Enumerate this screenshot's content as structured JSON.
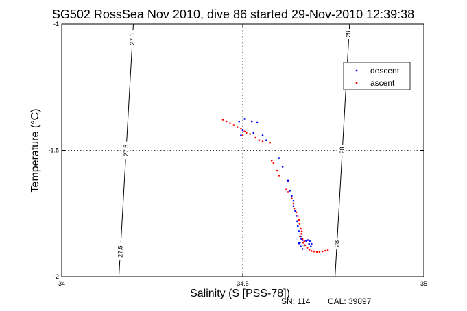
{
  "chart_data": {
    "type": "scatter",
    "title": "SG502 RossSea Nov 2010, dive 86 started 29-Nov-2010 12:39:38",
    "xlabel": "Salinity (S [PSS-78])",
    "ylabel": "Temperature (°C)",
    "xlim": [
      34,
      35
    ],
    "ylim": [
      -2,
      -1
    ],
    "xticks": [
      "34",
      "34.5",
      "35"
    ],
    "yticks": [
      "-1",
      "-1.5",
      "-2"
    ],
    "grid": "dotted lines at x=34.5 and y=-1.5",
    "legend_position": "top-right",
    "footer": {
      "sn": "SN: 114",
      "cal": "CAL: 39897"
    },
    "density_contours": [
      {
        "label": "27.5",
        "points": [
          [
            34.198,
            -1.0
          ],
          [
            34.158,
            -2.0
          ]
        ]
      },
      {
        "label": "28",
        "points": [
          [
            34.795,
            -1.0
          ],
          [
            34.755,
            -2.0
          ]
        ]
      }
    ],
    "contour_label_positions": [
      {
        "label": "27.5",
        "at": [
          34.195,
          -1.06
        ]
      },
      {
        "label": "27.5",
        "at": [
          34.178,
          -1.5
        ]
      },
      {
        "label": "27.5",
        "at": [
          34.162,
          -1.9
        ]
      },
      {
        "label": "28",
        "at": [
          34.792,
          -1.04
        ]
      },
      {
        "label": "28",
        "at": [
          34.775,
          -1.5
        ]
      },
      {
        "label": "28",
        "at": [
          34.76,
          -1.87
        ]
      }
    ],
    "series": [
      {
        "name": "descent",
        "color": "#0000ff",
        "points": [
          [
            34.49,
            -1.385
          ],
          [
            34.505,
            -1.375
          ],
          [
            34.525,
            -1.385
          ],
          [
            34.54,
            -1.39
          ],
          [
            34.53,
            -1.43
          ],
          [
            34.555,
            -1.44
          ],
          [
            34.565,
            -1.46
          ],
          [
            34.5,
            -1.42
          ],
          [
            34.495,
            -1.44
          ],
          [
            34.6,
            -1.53
          ],
          [
            34.61,
            -1.565
          ],
          [
            34.625,
            -1.62
          ],
          [
            34.63,
            -1.66
          ],
          [
            34.635,
            -1.68
          ],
          [
            34.64,
            -1.7
          ],
          [
            34.64,
            -1.72
          ],
          [
            34.645,
            -1.74
          ],
          [
            34.648,
            -1.76
          ],
          [
            34.65,
            -1.78
          ],
          [
            34.652,
            -1.8
          ],
          [
            34.655,
            -1.82
          ],
          [
            34.66,
            -1.84
          ],
          [
            34.665,
            -1.855
          ],
          [
            34.67,
            -1.86
          ],
          [
            34.675,
            -1.858
          ],
          [
            34.68,
            -1.855
          ],
          [
            34.685,
            -1.86
          ],
          [
            34.69,
            -1.87
          ],
          [
            34.66,
            -1.88
          ],
          [
            34.658,
            -1.865
          ],
          [
            34.662,
            -1.85
          ],
          [
            34.67,
            -1.875
          ],
          [
            34.683,
            -1.87
          ],
          [
            34.688,
            -1.88
          ],
          [
            34.655,
            -1.868
          ],
          [
            34.665,
            -1.89
          ]
        ]
      },
      {
        "name": "ascent",
        "color": "#ff0000",
        "points": [
          [
            34.445,
            -1.378
          ],
          [
            34.455,
            -1.385
          ],
          [
            34.465,
            -1.392
          ],
          [
            34.475,
            -1.4
          ],
          [
            34.485,
            -1.408
          ],
          [
            34.495,
            -1.415
          ],
          [
            34.505,
            -1.425
          ],
          [
            34.51,
            -1.43
          ],
          [
            34.5,
            -1.44
          ],
          [
            34.52,
            -1.435
          ],
          [
            34.535,
            -1.45
          ],
          [
            34.545,
            -1.46
          ],
          [
            34.555,
            -1.465
          ],
          [
            34.575,
            -1.47
          ],
          [
            34.58,
            -1.54
          ],
          [
            34.585,
            -1.55
          ],
          [
            34.595,
            -1.58
          ],
          [
            34.6,
            -1.6
          ],
          [
            34.62,
            -1.655
          ],
          [
            34.625,
            -1.665
          ],
          [
            34.635,
            -1.69
          ],
          [
            34.64,
            -1.71
          ],
          [
            34.642,
            -1.73
          ],
          [
            34.648,
            -1.745
          ],
          [
            34.652,
            -1.76
          ],
          [
            34.655,
            -1.775
          ],
          [
            34.657,
            -1.79
          ],
          [
            34.66,
            -1.81
          ],
          [
            34.662,
            -1.83
          ],
          [
            34.665,
            -1.85
          ],
          [
            34.667,
            -1.865
          ],
          [
            34.672,
            -1.875
          ],
          [
            34.678,
            -1.885
          ],
          [
            34.684,
            -1.893
          ],
          [
            34.69,
            -1.898
          ],
          [
            34.697,
            -1.9
          ],
          [
            34.705,
            -1.902
          ],
          [
            34.712,
            -1.902
          ],
          [
            34.72,
            -1.9
          ],
          [
            34.728,
            -1.897
          ],
          [
            34.735,
            -1.895
          ],
          [
            34.658,
            -1.84
          ],
          [
            34.663,
            -1.82
          ],
          [
            34.67,
            -1.86
          ]
        ]
      }
    ]
  }
}
